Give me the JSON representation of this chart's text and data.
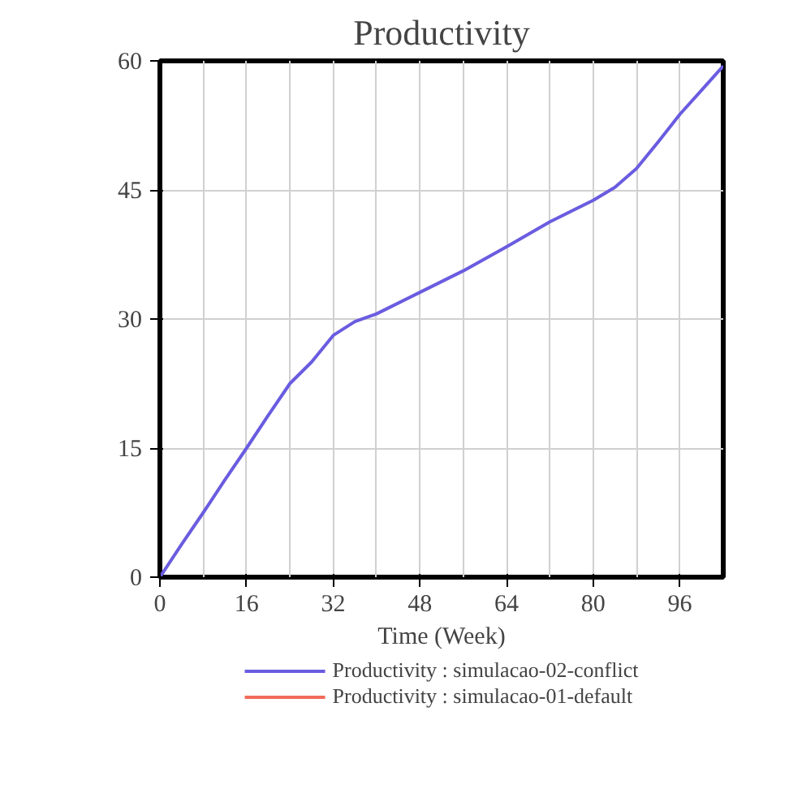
{
  "chart_data": {
    "type": "line",
    "title": "Productivity",
    "xlabel": "Time (Week)",
    "x": [
      0,
      4,
      8,
      12,
      16,
      20,
      24,
      28,
      32,
      36,
      40,
      48,
      56,
      64,
      72,
      80,
      84,
      88,
      92,
      96,
      100,
      104
    ],
    "series": [
      {
        "name": "Productivity : simulacao-02-conflict",
        "color": "#6a5ce0",
        "values": [
          0,
          3.8,
          7.5,
          11.3,
          15,
          18.8,
          22.5,
          25,
          28.1,
          29.7,
          30.6,
          33.1,
          35.6,
          38.4,
          41.3,
          43.8,
          45.3,
          47.5,
          50.6,
          53.8,
          56.6,
          59.4
        ]
      },
      {
        "name": "Productivity : simulacao-01-default",
        "color": "#f26b5b",
        "values": [
          null,
          null,
          null,
          null,
          null,
          null,
          null,
          null,
          null,
          null,
          null,
          null,
          null,
          null,
          null,
          null,
          null,
          null,
          null,
          null,
          null,
          null
        ]
      }
    ],
    "xlim": [
      0,
      104
    ],
    "ylim": [
      0,
      60
    ],
    "xticks": [
      0,
      16,
      32,
      48,
      64,
      80,
      96
    ],
    "yticks": [
      0,
      15,
      30,
      45,
      60
    ],
    "grid": true,
    "legend": "bottom",
    "line_style": "solid",
    "marker": "none"
  }
}
